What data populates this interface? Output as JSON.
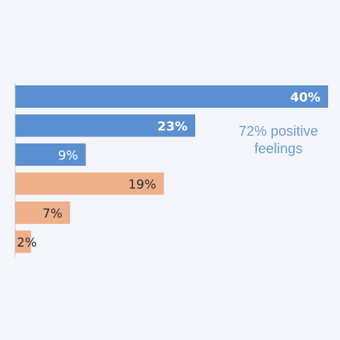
{
  "chart_data": {
    "type": "bar",
    "orientation": "horizontal",
    "title": "",
    "xlabel": "",
    "ylabel": "",
    "xlim": [
      0,
      40
    ],
    "grid": false,
    "legend": "none",
    "values": [
      40,
      23,
      9,
      19,
      7,
      2
    ],
    "value_labels": [
      "40%",
      "23%",
      "9%",
      "19%",
      "7%",
      "2%"
    ],
    "bar_colors": [
      "#5b8fd1",
      "#5b8fd1",
      "#5b8fd1",
      "#eeb08b",
      "#eeb08b",
      "#eeb08b"
    ],
    "label_colors": [
      "#ffffff",
      "#ffffff",
      "#ffffff",
      "#2b2b2b",
      "#2b2b2b",
      "#2b2b2b"
    ],
    "annotation": {
      "line1": "72% positive",
      "line2": "feelings",
      "color": "#6f9bcf"
    }
  }
}
